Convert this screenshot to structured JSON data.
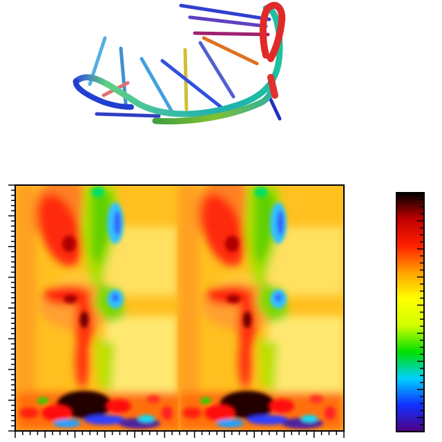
{
  "figure": {
    "structure": {
      "kind": "RNA hairpin ribbon-and-stick model",
      "colors": [
        "#e02020",
        "#20b0a0",
        "#2040d0",
        "#60d060",
        "#e0c020"
      ]
    },
    "heatmap": {
      "kind": "correlation map",
      "panels": 2
    },
    "colorbar": {
      "stops": [
        "#500080",
        "#1030ff",
        "#00d0ff",
        "#00e000",
        "#d0ff00",
        "#ffff00",
        "#ffa000",
        "#ff2000",
        "#c00000",
        "#000000"
      ]
    }
  }
}
